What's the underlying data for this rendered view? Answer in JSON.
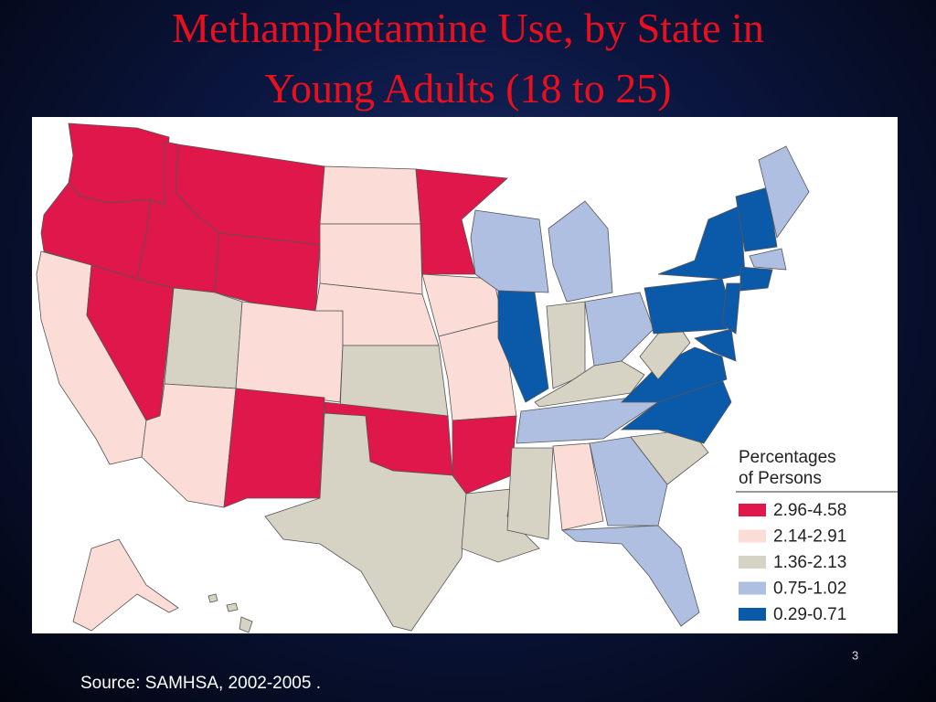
{
  "title": [
    "Methamphetamine Use, by State in",
    "Young Adults (18 to 25)"
  ],
  "legend": {
    "title": [
      "Percentages",
      "of Persons"
    ],
    "items": [
      {
        "label": "2.96-4.58",
        "color": "#e0174a"
      },
      {
        "label": "2.14-2.91",
        "color": "#fbdcd6"
      },
      {
        "label": "1.36-2.13",
        "color": "#d6d3c4"
      },
      {
        "label": "0.75-1.02",
        "color": "#aebfe2"
      },
      {
        "label": "0.29-0.71",
        "color": "#0b5aaa"
      }
    ]
  },
  "page_number": "3",
  "source": "Source: SAMHSA, 2002-2005 ."
}
